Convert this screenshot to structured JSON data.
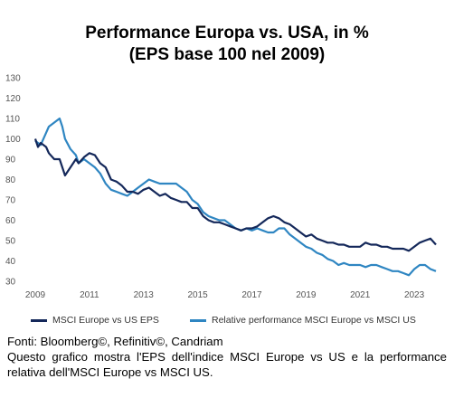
{
  "title_line1": "Performance Europa vs. USA, in %",
  "title_line2": "(EPS base 100 nel 2009)",
  "chart_data": {
    "type": "line",
    "title": "Performance Europa vs. USA, in % (EPS base 100 nel 2009)",
    "xlabel": "",
    "ylabel": "",
    "xlim": [
      2009,
      2024.0
    ],
    "ylim": [
      30,
      130
    ],
    "x_ticks": [
      "2009",
      "2011",
      "2013",
      "2015",
      "2017",
      "2019",
      "2021",
      "2023"
    ],
    "y_ticks": [
      "130",
      "120",
      "110",
      "100",
      "90",
      "80",
      "70",
      "60",
      "50",
      "40",
      "30"
    ],
    "grid": false,
    "legend_position": "bottom",
    "series": [
      {
        "name": "MSCI Europe vs US EPS",
        "color": "#14285a",
        "x": [
          2009.0,
          2009.1,
          2009.2,
          2009.4,
          2009.5,
          2009.7,
          2009.9,
          2010.0,
          2010.1,
          2010.3,
          2010.5,
          2010.6,
          2010.8,
          2011.0,
          2011.2,
          2011.4,
          2011.6,
          2011.8,
          2012.0,
          2012.2,
          2012.4,
          2012.6,
          2012.8,
          2013.0,
          2013.2,
          2013.4,
          2013.6,
          2013.8,
          2014.0,
          2014.2,
          2014.4,
          2014.6,
          2014.8,
          2015.0,
          2015.2,
          2015.4,
          2015.6,
          2015.8,
          2016.0,
          2016.2,
          2016.4,
          2016.6,
          2016.8,
          2017.0,
          2017.2,
          2017.4,
          2017.6,
          2017.8,
          2018.0,
          2018.2,
          2018.4,
          2018.6,
          2018.8,
          2019.0,
          2019.2,
          2019.4,
          2019.6,
          2019.8,
          2020.0,
          2020.2,
          2020.4,
          2020.6,
          2020.8,
          2021.0,
          2021.2,
          2021.4,
          2021.6,
          2021.8,
          2022.0,
          2022.2,
          2022.4,
          2022.6,
          2022.8,
          2023.0,
          2023.2,
          2023.4,
          2023.6,
          2023.8
        ],
        "values": [
          100,
          96,
          98,
          96,
          93,
          90,
          90,
          86,
          82,
          86,
          90,
          88,
          91,
          93,
          92,
          88,
          86,
          80,
          79,
          77,
          74,
          74,
          73,
          75,
          76,
          74,
          72,
          73,
          71,
          70,
          69,
          69,
          66,
          66,
          62,
          60,
          59,
          59,
          58,
          57,
          56,
          55,
          56,
          56,
          57,
          59,
          61,
          62,
          61,
          59,
          58,
          56,
          54,
          52,
          53,
          51,
          50,
          49,
          49,
          48,
          48,
          47,
          47,
          47,
          49,
          48,
          48,
          47,
          47,
          46,
          46,
          46,
          45,
          47,
          49,
          50,
          51,
          48
        ]
      },
      {
        "name": "Relative performance MSCI Europe vs MSCI US",
        "color": "#2f86c2",
        "x": [
          2009.0,
          2009.2,
          2009.4,
          2009.5,
          2009.7,
          2009.9,
          2010.0,
          2010.1,
          2010.3,
          2010.5,
          2010.6,
          2010.8,
          2011.0,
          2011.2,
          2011.4,
          2011.6,
          2011.8,
          2012.0,
          2012.2,
          2012.4,
          2012.6,
          2012.8,
          2013.0,
          2013.2,
          2013.4,
          2013.6,
          2013.8,
          2014.0,
          2014.2,
          2014.4,
          2014.6,
          2014.8,
          2015.0,
          2015.2,
          2015.4,
          2015.6,
          2015.8,
          2016.0,
          2016.2,
          2016.4,
          2016.6,
          2016.8,
          2017.0,
          2017.2,
          2017.4,
          2017.6,
          2017.8,
          2018.0,
          2018.2,
          2018.4,
          2018.6,
          2018.8,
          2019.0,
          2019.2,
          2019.4,
          2019.6,
          2019.8,
          2020.0,
          2020.2,
          2020.4,
          2020.6,
          2020.8,
          2021.0,
          2021.2,
          2021.4,
          2021.6,
          2021.8,
          2022.0,
          2022.2,
          2022.4,
          2022.6,
          2022.8,
          2023.0,
          2023.2,
          2023.4,
          2023.6,
          2023.8
        ],
        "values": [
          99,
          97,
          103,
          106,
          108,
          110,
          106,
          100,
          95,
          92,
          88,
          90,
          88,
          86,
          83,
          78,
          75,
          74,
          73,
          72,
          74,
          76,
          78,
          80,
          79,
          78,
          78,
          78,
          78,
          76,
          74,
          70,
          68,
          64,
          62,
          61,
          60,
          60,
          58,
          56,
          55,
          56,
          55,
          56,
          55,
          54,
          54,
          56,
          56,
          53,
          51,
          49,
          47,
          46,
          44,
          43,
          41,
          40,
          38,
          39,
          38,
          38,
          38,
          37,
          38,
          38,
          37,
          36,
          35,
          35,
          34,
          33,
          36,
          38,
          38,
          36,
          35
        ]
      }
    ]
  },
  "footer": {
    "source": "Fonti: Bloomberg©, Refinitiv©, Candriam",
    "description": "Questo grafico mostra l'EPS dell'indice MSCI Europe vs US e la performance relativa dell'MSCI Europe vs MSCI US."
  }
}
